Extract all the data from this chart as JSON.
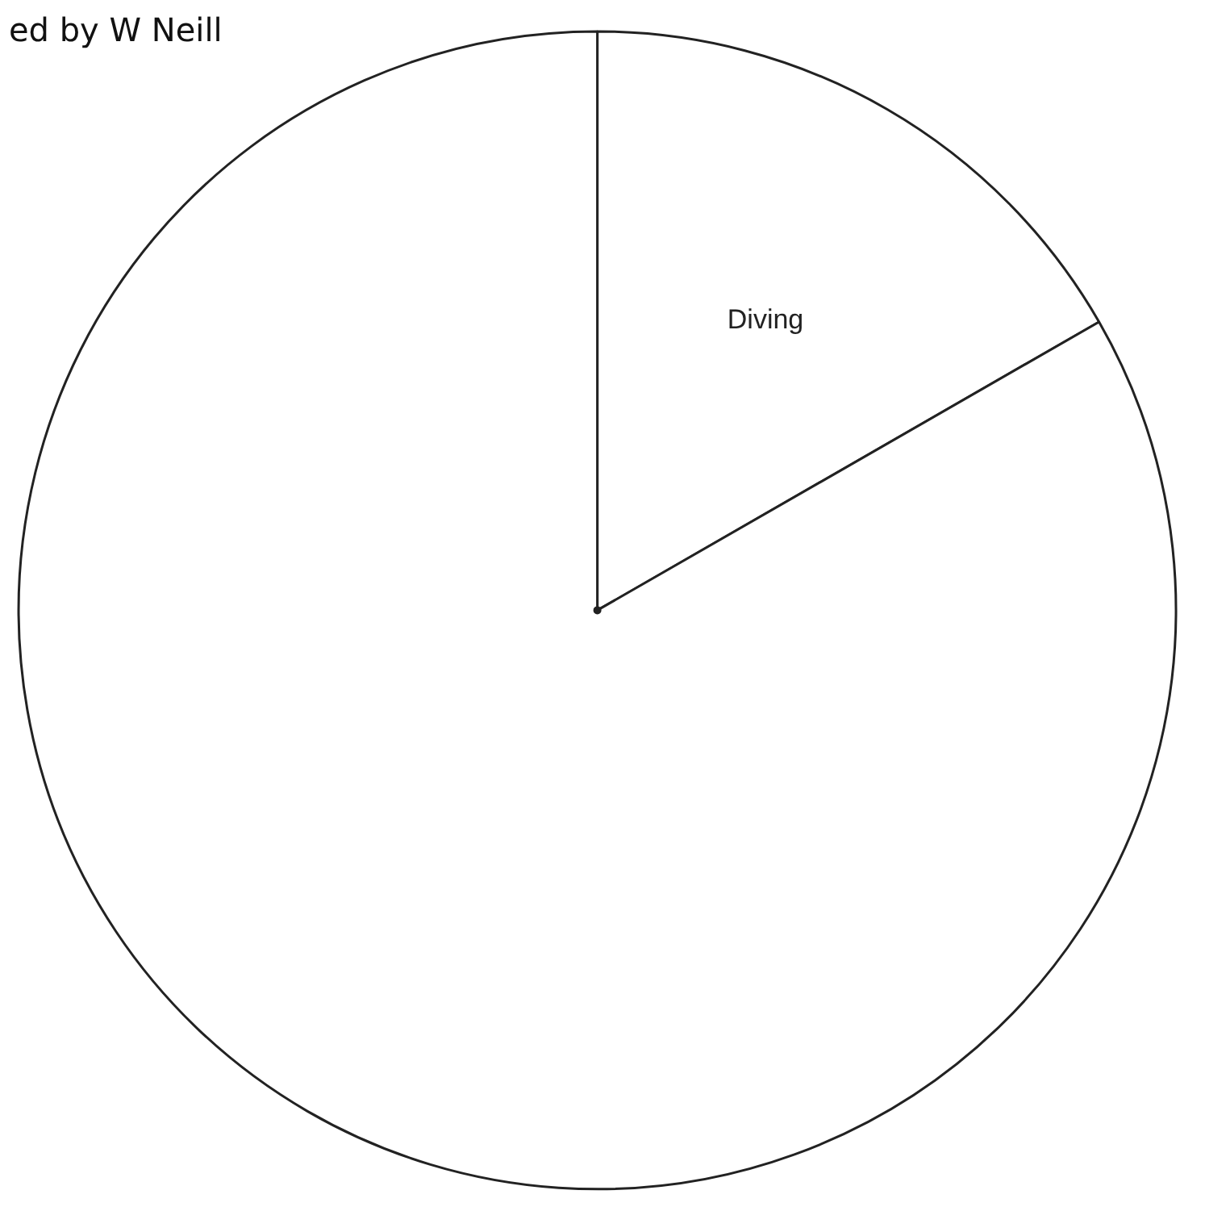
{
  "chart_data": {
    "type": "pie",
    "categories": [
      "Diving",
      null
    ],
    "values": [
      16.7,
      83.3
    ],
    "colors": [
      "#ffffff",
      "#ffffff"
    ],
    "annotations": [
      "ed by W Neill"
    ]
  }
}
